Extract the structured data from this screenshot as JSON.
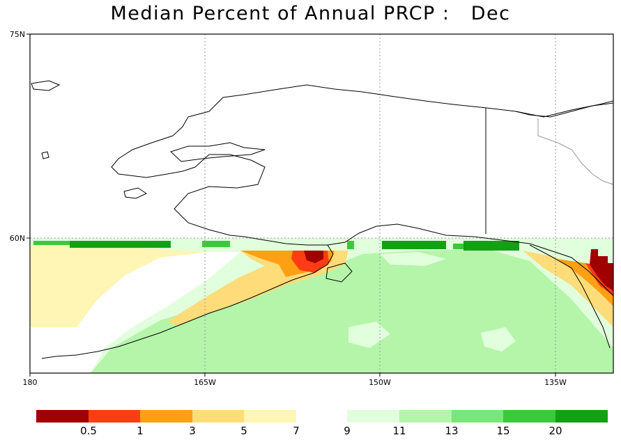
{
  "title": "Median Percent of Annual PRCP :   Dec",
  "axes": {
    "lat_labels": [
      "75N",
      "60N"
    ],
    "lon_labels": [
      "180",
      "165W",
      "150W",
      "135W"
    ]
  },
  "legend": {
    "thresholds": [
      "0.5",
      "1",
      "3",
      "5",
      "7",
      "9",
      "11",
      "13",
      "15",
      "20"
    ],
    "bins": [
      {
        "range": "<0.5",
        "color": "#a00000"
      },
      {
        "range": "0.5-1",
        "color": "#ff3c14"
      },
      {
        "range": "1-3",
        "color": "#ffa014"
      },
      {
        "range": "3-5",
        "color": "#ffdc7a"
      },
      {
        "range": "5-7",
        "color": "#fff5b4"
      },
      {
        "range": "7-9",
        "color": "#ffffff"
      },
      {
        "range": "9-11",
        "color": "#e1ffdc"
      },
      {
        "range": "11-13",
        "color": "#b4f5aa"
      },
      {
        "range": "13-15",
        "color": "#78e678"
      },
      {
        "range": "15-20",
        "color": "#3cc83c"
      },
      {
        "range": ">20",
        "color": "#14a014"
      }
    ]
  }
}
